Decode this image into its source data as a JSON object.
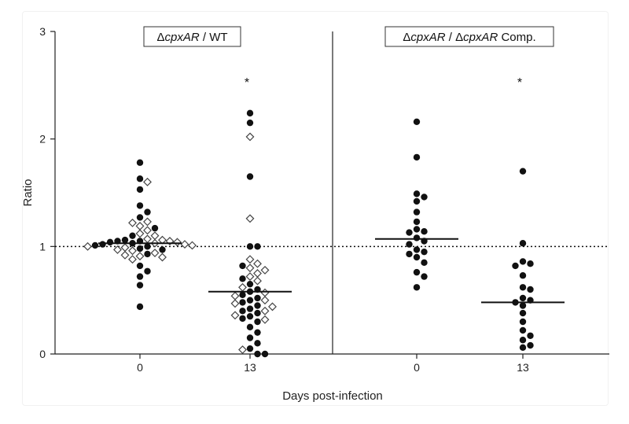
{
  "chart_data": {
    "type": "scatter",
    "ylabel": "Ratio",
    "xlabel": "Days post-infection",
    "ylim": [
      0,
      3
    ],
    "y_ticks": [
      "0",
      "1",
      "2",
      "3"
    ],
    "reference_line": 1,
    "panels": [
      {
        "title_segments": [
          {
            "text": "Δ",
            "italic": false
          },
          {
            "text": "cpxAR",
            "italic": true
          },
          {
            "text": " / WT",
            "italic": false
          }
        ],
        "groups": [
          {
            "label": "0",
            "median": 1.03,
            "significance": "",
            "filled": [
              1.78,
              1.63,
              1.53,
              1.38,
              1.32,
              1.27,
              1.17,
              1.1,
              1.06,
              1.05,
              1.05,
              1.04,
              1.03,
              1.02,
              1.01,
              1.0,
              0.98,
              0.97,
              0.93,
              0.82,
              0.77,
              0.72,
              0.64,
              0.44
            ],
            "open": [
              1.6,
              1.23,
              1.22,
              1.19,
              1.15,
              1.12,
              1.1,
              1.07,
              1.06,
              1.05,
              1.04,
              1.03,
              1.02,
              1.01,
              1.0,
              0.99,
              0.97,
              0.96,
              0.94,
              0.92,
              0.91,
              0.9,
              0.88
            ]
          },
          {
            "label": "13",
            "median": 0.58,
            "significance": "*",
            "filled": [
              2.24,
              2.15,
              1.65,
              1.0,
              1.0,
              0.82,
              0.7,
              0.65,
              0.6,
              0.58,
              0.55,
              0.52,
              0.5,
              0.48,
              0.45,
              0.42,
              0.4,
              0.38,
              0.35,
              0.33,
              0.3,
              0.25,
              0.2,
              0.15,
              0.1,
              0.05,
              0.0,
              0.0
            ],
            "open": [
              2.02,
              1.26,
              0.88,
              0.84,
              0.8,
              0.78,
              0.75,
              0.72,
              0.68,
              0.62,
              0.57,
              0.54,
              0.5,
              0.47,
              0.44,
              0.4,
              0.36,
              0.32,
              0.04
            ]
          }
        ]
      },
      {
        "title_segments": [
          {
            "text": "Δ",
            "italic": false
          },
          {
            "text": "cpxAR",
            "italic": true
          },
          {
            "text": " / Δ",
            "italic": false
          },
          {
            "text": "cpxAR",
            "italic": true
          },
          {
            "text": " Comp.",
            "italic": false
          }
        ],
        "groups": [
          {
            "label": "0",
            "median": 1.07,
            "significance": "",
            "filled": [
              2.16,
              1.83,
              1.49,
              1.46,
              1.42,
              1.32,
              1.23,
              1.16,
              1.14,
              1.13,
              1.08,
              1.05,
              1.02,
              0.97,
              0.95,
              0.93,
              0.9,
              0.85,
              0.76,
              0.72,
              0.62
            ]
          },
          {
            "label": "13",
            "median": 0.48,
            "significance": "*",
            "filled": [
              1.7,
              1.03,
              0.86,
              0.84,
              0.82,
              0.73,
              0.62,
              0.6,
              0.52,
              0.5,
              0.48,
              0.45,
              0.38,
              0.3,
              0.22,
              0.17,
              0.13,
              0.08,
              0.06
            ]
          }
        ]
      }
    ]
  }
}
